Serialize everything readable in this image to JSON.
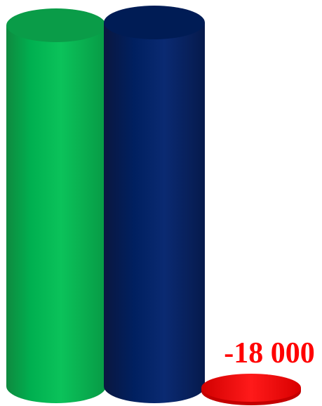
{
  "chart_data": {
    "type": "bar",
    "style": "3d-cylinder",
    "series": [
      {
        "values": [
          null,
          null,
          -18000
        ]
      }
    ],
    "data_labels": [
      "",
      "",
      "-18 000"
    ],
    "colors": [
      "#00b050",
      "#002060",
      "#ff0000"
    ],
    "grid": false,
    "legend": "none"
  }
}
